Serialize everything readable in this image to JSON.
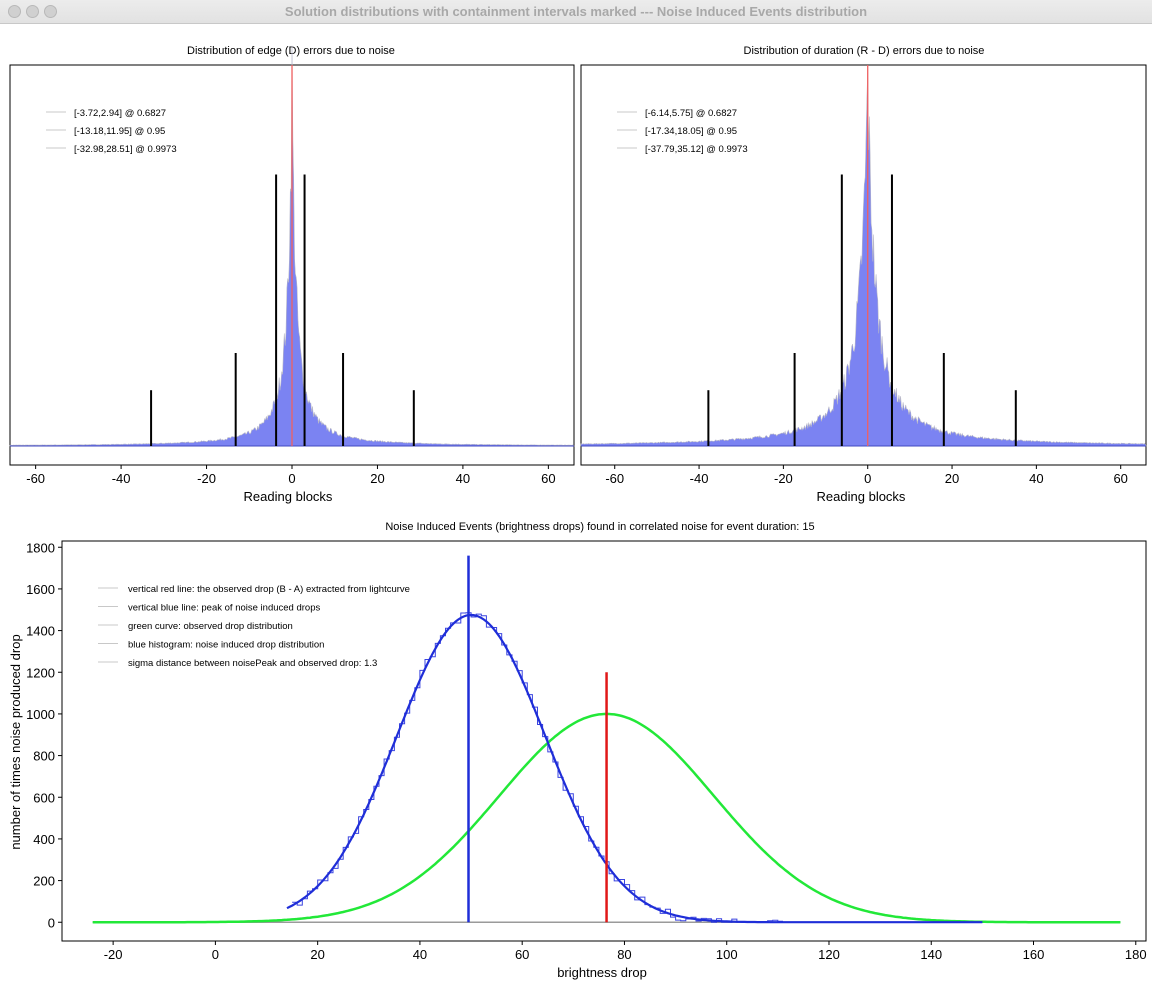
{
  "window": {
    "title": "Solution distributions with containment intervals marked --- Noise Induced Events distribution"
  },
  "chart_data": [
    {
      "type": "histogram",
      "title": "Distribution of edge (D) errors due to noise",
      "xlabel": "Reading blocks",
      "ylabel": "",
      "xlim": [
        -66,
        66
      ],
      "xticks": [
        -60,
        -40,
        -20,
        0,
        20,
        40,
        60
      ],
      "grid": false,
      "legend": [
        "[-3.72,2.94] @ 0.6827",
        "[-13.18,11.95] @ 0.95",
        "[-32.98,28.51] @ 0.9973"
      ],
      "legend_position": "top-left",
      "distribution_shape": {
        "center": 0,
        "scale": 1.45,
        "peak": 1.0
      },
      "marker_lines": [
        {
          "x": -3.72,
          "height": 0.73
        },
        {
          "x": 2.94,
          "height": 0.73
        },
        {
          "x": -13.18,
          "height": 0.25
        },
        {
          "x": 11.95,
          "height": 0.25
        },
        {
          "x": -32.98,
          "height": 0.15
        },
        {
          "x": 28.51,
          "height": 0.15
        }
      ],
      "center_line_x": 0,
      "colors": {
        "bars": "#7b83f2",
        "center_line": "#f06060",
        "markers": "#000000"
      }
    },
    {
      "type": "histogram",
      "title": "Distribution of duration (R - D) errors due to noise",
      "xlabel": "Reading blocks",
      "ylabel": "",
      "xlim": [
        -68,
        66
      ],
      "xticks": [
        -60,
        -40,
        -20,
        0,
        20,
        40,
        60
      ],
      "grid": false,
      "legend": [
        "[-6.14,5.75] @ 0.6827",
        "[-17.34,18.05] @ 0.95",
        "[-37.79,35.12] @ 0.9973"
      ],
      "legend_position": "top-left",
      "distribution_shape": {
        "center": 0,
        "scale": 2.8,
        "peak": 1.0
      },
      "marker_lines": [
        {
          "x": -6.14,
          "height": 0.73
        },
        {
          "x": 5.75,
          "height": 0.73
        },
        {
          "x": -17.34,
          "height": 0.25
        },
        {
          "x": 18.05,
          "height": 0.25
        },
        {
          "x": -37.79,
          "height": 0.15
        },
        {
          "x": 35.12,
          "height": 0.15
        }
      ],
      "center_line_x": 0,
      "colors": {
        "bars": "#7b83f2",
        "center_line": "#f06060",
        "markers": "#000000"
      }
    },
    {
      "type": "line",
      "title": "Noise Induced Events (brightness drops) found in correlated noise for event duration: 15",
      "xlabel": "brightness drop",
      "ylabel": "number of times noise produced drop",
      "xlim": [
        -30,
        182
      ],
      "ylim": [
        -90,
        1830
      ],
      "xticks": [
        -20,
        0,
        20,
        40,
        60,
        80,
        100,
        120,
        140,
        160,
        180
      ],
      "yticks": [
        0,
        200,
        400,
        600,
        800,
        1000,
        1200,
        1400,
        1600,
        1800
      ],
      "grid": false,
      "legend": [
        "vertical red line: the observed drop (B - A) extracted from lightcurve",
        "vertical blue line: peak of noise induced drops",
        "green curve: observed drop distribution",
        "blue histogram: noise induced drop distribution",
        "sigma distance between noisePeak and observed drop: 1.3"
      ],
      "legend_position": "top-left",
      "blue_distribution": {
        "mean": 50,
        "sigma": 14.5,
        "peak": 1475
      },
      "green_distribution": {
        "mean": 76.5,
        "sigma": 21,
        "peak": 1000
      },
      "x_range": [
        -24,
        177
      ],
      "red_line": {
        "x": 76.5,
        "top": 1200
      },
      "blue_line": {
        "x": 49.5,
        "top": 1760
      },
      "colors": {
        "blue": "#1f2ed8",
        "green": "#22e838",
        "red": "#e01818",
        "baseline": "#9a9a9a"
      }
    }
  ]
}
